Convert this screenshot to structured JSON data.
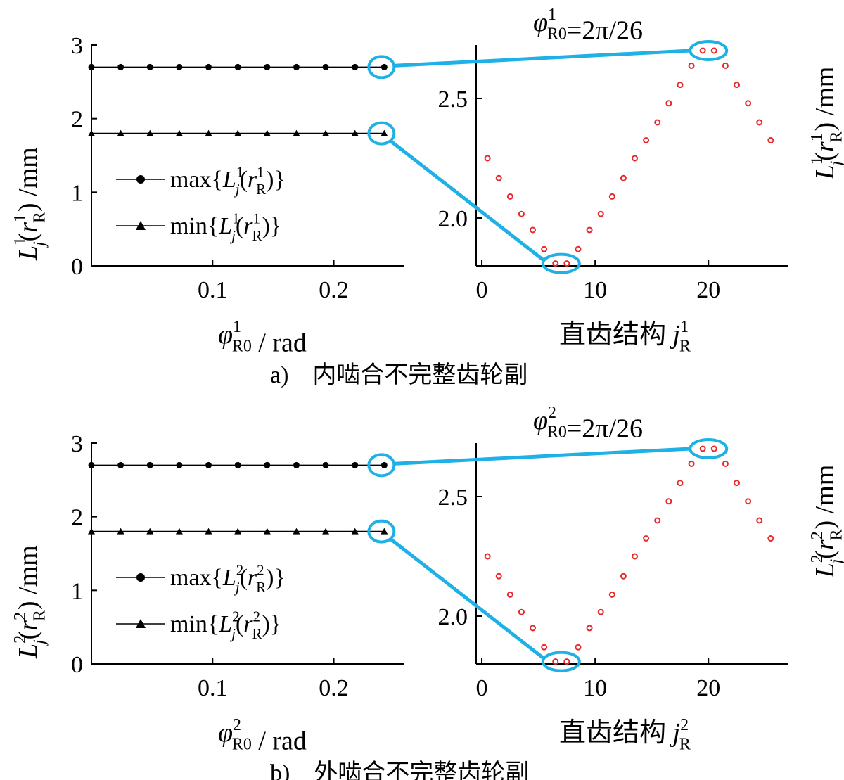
{
  "chart_data": [
    {
      "id": "a",
      "caption": {
        "label": "a)",
        "text": "内啮合不完整齿轮副"
      },
      "left": {
        "type": "line",
        "xlim": [
          0,
          0.2583
        ],
        "ylim": [
          0,
          3
        ],
        "xticks": [
          "0.1",
          "0.2"
        ],
        "yticks": [
          "0",
          "1",
          "2",
          "3"
        ],
        "x": [
          0,
          0.02417,
          0.04833,
          0.0725,
          0.09667,
          0.12083,
          0.145,
          0.16917,
          0.19333,
          0.2175,
          0.24166
        ],
        "series": [
          {
            "name": "max",
            "marker": "circle",
            "value": 2.7
          },
          {
            "name": "min",
            "marker": "triangle",
            "value": 1.8
          }
        ],
        "xlabel": {
          "var": "φ",
          "sup": "1",
          "sub": "R0",
          "unit": "/ rad"
        },
        "ylabel": {
          "var": "L",
          "sup": "1",
          "sub": "j",
          "arg": "r",
          "arg_sup": "1",
          "arg_sub": "R",
          "unit": "/mm"
        },
        "legend": [
          {
            "prefix": "max",
            "var": "L",
            "sup": "1",
            "sub": "j",
            "arg": "r",
            "arg_sup": "1",
            "arg_sub": "R"
          },
          {
            "prefix": "min",
            "var": "L",
            "sup": "1",
            "sub": "j",
            "arg": "r",
            "arg_sup": "1",
            "arg_sub": "R"
          }
        ]
      },
      "right": {
        "type": "scatter",
        "xlim": [
          -0.5,
          27
        ],
        "ylim": [
          1.8,
          2.7
        ],
        "xticks": [
          0,
          10,
          20
        ],
        "yticks": [
          "2.0",
          "2.5"
        ],
        "x": [
          0.5,
          1.5,
          2.5,
          3.5,
          4.5,
          5.5,
          6.5,
          7.5,
          8.5,
          9.5,
          10.5,
          11.5,
          12.5,
          13.5,
          14.5,
          15.5,
          16.5,
          17.5,
          18.5,
          19.5,
          20.5,
          21.5,
          22.5,
          23.5,
          24.5,
          25.5
        ],
        "y": [
          2.25,
          2.167,
          2.09,
          2.017,
          1.95,
          1.87,
          1.81,
          1.81,
          1.87,
          1.95,
          2.017,
          2.09,
          2.167,
          2.25,
          2.325,
          2.4,
          2.48,
          2.557,
          2.637,
          2.7,
          2.7,
          2.637,
          2.557,
          2.48,
          2.4,
          2.325
        ],
        "xlabel": {
          "text": "直齿结构 ",
          "var": "j",
          "sup": "1",
          "sub": "R"
        },
        "ylabel": {
          "var": "L",
          "sup": "1",
          "sub": "j",
          "arg": "r",
          "arg_sup": "1",
          "arg_sub": "R",
          "unit": "/mm"
        },
        "annotation": {
          "var": "φ",
          "sup": "1",
          "sub": "R0",
          "value": "=2π/26"
        }
      },
      "highlight_color": "#1fb1e6",
      "marker_color": "#e8262b"
    },
    {
      "id": "b",
      "caption": {
        "label": "b)",
        "text": "外啮合不完整齿轮副"
      },
      "left": {
        "type": "line",
        "xlim": [
          0,
          0.2583
        ],
        "ylim": [
          0,
          3
        ],
        "xticks": [
          "0.1",
          "0.2"
        ],
        "yticks": [
          "0",
          "1",
          "2",
          "3"
        ],
        "x": [
          0,
          0.02417,
          0.04833,
          0.0725,
          0.09667,
          0.12083,
          0.145,
          0.16917,
          0.19333,
          0.2175,
          0.24166
        ],
        "series": [
          {
            "name": "max",
            "marker": "circle",
            "value": 2.7
          },
          {
            "name": "min",
            "marker": "triangle",
            "value": 1.8
          }
        ],
        "xlabel": {
          "var": "φ",
          "sup": "2",
          "sub": "R0",
          "unit": "/ rad"
        },
        "ylabel": {
          "var": "L",
          "sup": "2",
          "sub": "j",
          "arg": "r",
          "arg_sup": "2",
          "arg_sub": "R",
          "unit": "/mm"
        },
        "legend": [
          {
            "prefix": "max",
            "var": "L",
            "sup": "2",
            "sub": "j",
            "arg": "r",
            "arg_sup": "2",
            "arg_sub": "R"
          },
          {
            "prefix": "min",
            "var": "L",
            "sup": "2",
            "sub": "j",
            "arg": "r",
            "arg_sup": "2",
            "arg_sub": "R"
          }
        ]
      },
      "right": {
        "type": "scatter",
        "xlim": [
          -0.5,
          27
        ],
        "ylim": [
          1.8,
          2.7
        ],
        "xticks": [
          0,
          10,
          20
        ],
        "yticks": [
          "2.0",
          "2.5"
        ],
        "x": [
          0.5,
          1.5,
          2.5,
          3.5,
          4.5,
          5.5,
          6.5,
          7.5,
          8.5,
          9.5,
          10.5,
          11.5,
          12.5,
          13.5,
          14.5,
          15.5,
          16.5,
          17.5,
          18.5,
          19.5,
          20.5,
          21.5,
          22.5,
          23.5,
          24.5,
          25.5
        ],
        "y": [
          2.25,
          2.167,
          2.09,
          2.017,
          1.95,
          1.87,
          1.81,
          1.81,
          1.87,
          1.95,
          2.017,
          2.09,
          2.167,
          2.25,
          2.325,
          2.4,
          2.48,
          2.557,
          2.637,
          2.7,
          2.7,
          2.637,
          2.557,
          2.48,
          2.4,
          2.325
        ],
        "xlabel": {
          "text": "直齿结构 ",
          "var": "j",
          "sup": "2",
          "sub": "R"
        },
        "ylabel": {
          "var": "L",
          "sup": "2",
          "sub": "j",
          "arg": "r",
          "arg_sup": "2",
          "arg_sub": "R",
          "unit": "/mm"
        },
        "annotation": {
          "var": "φ",
          "sup": "2",
          "sub": "R0",
          "value": "=2π/26"
        }
      },
      "highlight_color": "#1fb1e6",
      "marker_color": "#e8262b"
    }
  ]
}
